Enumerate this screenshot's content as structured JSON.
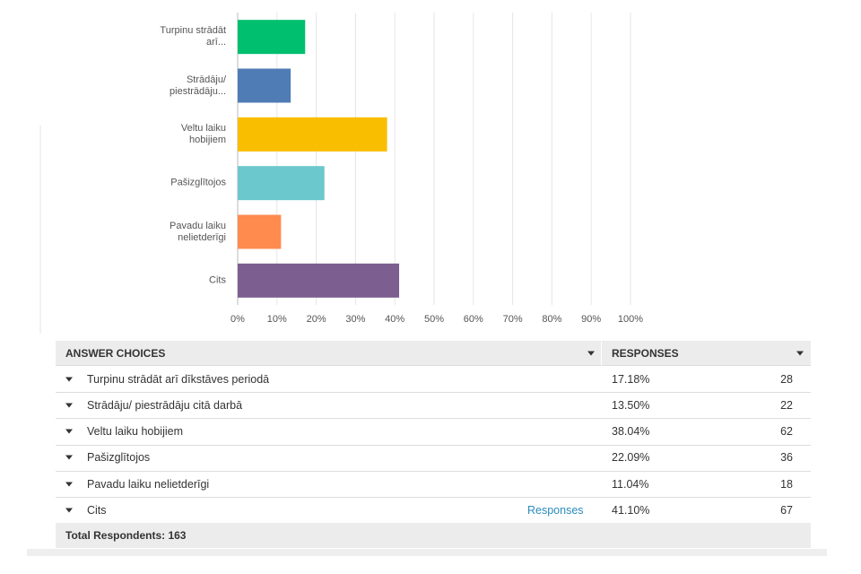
{
  "chart_data": {
    "type": "barh",
    "categories": [
      "Turpinu strādāt arī...",
      "Strādāju/ piestrādāju...",
      "Veltu laiku hobijiem",
      "Pašizglītojos",
      "Pavadu laiku nelietderīgi",
      "Cits"
    ],
    "values": [
      17.18,
      13.5,
      38.04,
      22.09,
      11.04,
      41.1
    ],
    "colors": [
      "#00bf6f",
      "#507cb6",
      "#f9be00",
      "#6bc8cd",
      "#ff8b4f",
      "#7d5e90"
    ],
    "xlim": [
      0,
      100
    ],
    "xticks": [
      {
        "value": 0,
        "label": "0%"
      },
      {
        "value": 10,
        "label": "10%"
      },
      {
        "value": 20,
        "label": "20%"
      },
      {
        "value": 30,
        "label": "30%"
      },
      {
        "value": 40,
        "label": "40%"
      },
      {
        "value": 50,
        "label": "50%"
      },
      {
        "value": 60,
        "label": "60%"
      },
      {
        "value": 70,
        "label": "70%"
      },
      {
        "value": 80,
        "label": "80%"
      },
      {
        "value": 90,
        "label": "90%"
      },
      {
        "value": 100,
        "label": "100%"
      }
    ],
    "grid": true
  },
  "table": {
    "header": {
      "choices": "ANSWER CHOICES",
      "responses": "RESPONSES"
    },
    "rows": [
      {
        "choice": "Turpinu strādāt arī dīkstāves periodā",
        "percent": "17.18%",
        "count": 28
      },
      {
        "choice": "Strādāju/ piestrādāju citā darbā",
        "percent": "13.50%",
        "count": 22
      },
      {
        "choice": "Veltu laiku hobijiem",
        "percent": "38.04%",
        "count": 62
      },
      {
        "choice": "Pašizglītojos",
        "percent": "22.09%",
        "count": 36
      },
      {
        "choice": "Pavadu laiku nelietderīgi",
        "percent": "11.04%",
        "count": 18
      },
      {
        "choice": "Cits",
        "link": "Responses",
        "percent": "41.10%",
        "count": 67
      }
    ],
    "footer": "Total Respondents: 163"
  }
}
